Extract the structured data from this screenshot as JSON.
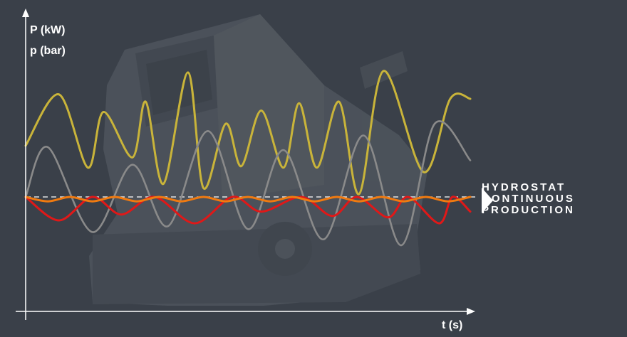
{
  "chart_data": {
    "type": "line",
    "ylabel_lines": [
      "P (kW)",
      "p (bar)"
    ],
    "xlabel": "t (s)",
    "caption_lines": [
      "HYDROSTAT",
      "CONTINUOUS",
      "PRODUCTION"
    ],
    "baseline_style": "dashed",
    "grid": false,
    "colors": {
      "background": "#3a4049",
      "axis": "#ffffff",
      "yellow": "#c9b43a",
      "grey": "#8a8a8a",
      "red": "#e01818",
      "orange": "#f07a10",
      "baseline": "#ffffff",
      "machine": "#565c64"
    },
    "series": [
      {
        "color_key": "yellow",
        "x": [
          0,
          0.075,
          0.14,
          0.175,
          0.24,
          0.27,
          0.31,
          0.365,
          0.4,
          0.45,
          0.485,
          0.53,
          0.58,
          0.615,
          0.655,
          0.705,
          0.75,
          0.805,
          0.895,
          0.955,
          1.0
        ],
        "y": [
          0.35,
          0.7,
          0.2,
          0.58,
          0.27,
          0.65,
          0.09,
          0.85,
          0.06,
          0.5,
          0.21,
          0.59,
          0.2,
          0.64,
          0.2,
          0.65,
          0.02,
          0.86,
          0.17,
          0.67,
          0.67
        ]
      },
      {
        "color_key": "grey",
        "x": [
          0,
          0.05,
          0.15,
          0.24,
          0.32,
          0.41,
          0.5,
          0.58,
          0.67,
          0.76,
          0.845,
          0.92,
          1.0
        ],
        "y": [
          0.0,
          0.34,
          -0.24,
          0.22,
          -0.2,
          0.45,
          -0.22,
          0.32,
          -0.29,
          0.42,
          -0.33,
          0.5,
          0.25
        ]
      },
      {
        "color_key": "red",
        "x": [
          0,
          0.075,
          0.15,
          0.215,
          0.29,
          0.38,
          0.465,
          0.53,
          0.62,
          0.69,
          0.745,
          0.815,
          0.86,
          0.93,
          0.96,
          1.0
        ],
        "y": [
          0.0,
          -0.16,
          0.0,
          -0.12,
          0.0,
          -0.18,
          0.0,
          -0.1,
          0.0,
          -0.13,
          0.0,
          -0.14,
          0.0,
          -0.18,
          0.0,
          -0.1
        ]
      },
      {
        "color_key": "orange",
        "x": [
          0,
          0.05,
          0.1,
          0.15,
          0.2,
          0.25,
          0.3,
          0.35,
          0.4,
          0.45,
          0.5,
          0.55,
          0.6,
          0.65,
          0.7,
          0.75,
          0.8,
          0.85,
          0.9,
          0.95,
          1.0
        ],
        "y": [
          0.0,
          -0.03,
          0.0,
          -0.03,
          0.0,
          -0.03,
          0.0,
          -0.03,
          0.0,
          -0.03,
          0.0,
          -0.03,
          0.0,
          -0.03,
          0.0,
          -0.03,
          0.0,
          -0.03,
          0.0,
          -0.03,
          0.0
        ]
      }
    ]
  }
}
